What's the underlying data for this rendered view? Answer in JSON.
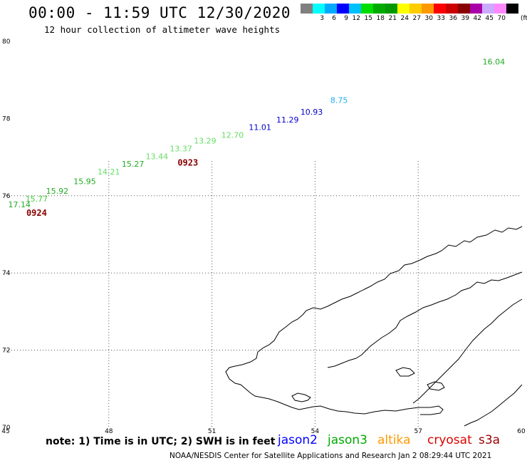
{
  "header": {
    "title": "00:00 - 11:59 UTC 12/30/2020",
    "subtitle": "12 hour collection of altimeter wave heights"
  },
  "colorbar": {
    "colors": [
      "#808080",
      "#00ffff",
      "#00aaff",
      "#0000ff",
      "#00c0ff",
      "#00dd00",
      "#00aa00",
      "#009900",
      "#ffff00",
      "#ffcc00",
      "#ff9900",
      "#ff0000",
      "#cc0000",
      "#880000",
      "#aa00aa",
      "#ccaaff",
      "#ff88ff",
      "#000000"
    ],
    "labels": [
      "",
      "3",
      "6",
      "9",
      "12",
      "15",
      "18",
      "21",
      "24",
      "27",
      "30",
      "33",
      "36",
      "39",
      "42",
      "45",
      "70",
      ""
    ],
    "unit": "(ft)"
  },
  "chart_data": {
    "type": "scatter",
    "x_axis": {
      "ticks": [
        45,
        48,
        51,
        54,
        57,
        60
      ],
      "labels": [
        "45",
        "48",
        "51",
        "54",
        "57",
        "60"
      ],
      "range": [
        45,
        60
      ]
    },
    "y_axis": {
      "ticks": [
        70,
        72,
        74,
        76,
        78,
        80
      ],
      "labels": [
        "70",
        "72",
        "74",
        "76",
        "78",
        "80"
      ],
      "range": [
        70,
        80
      ]
    },
    "grid": true,
    "points": [
      {
        "lon": 45.4,
        "lat": 75.7,
        "label": "17.14",
        "color": "#22aa22"
      },
      {
        "lon": 45.9,
        "lat": 75.85,
        "label": "15.77",
        "color": "#44cc44"
      },
      {
        "lon": 46.5,
        "lat": 76.05,
        "label": "15.92",
        "color": "#22aa22"
      },
      {
        "lon": 47.3,
        "lat": 76.3,
        "label": "15.95",
        "color": "#22aa22"
      },
      {
        "lon": 48.0,
        "lat": 76.55,
        "label": "14.21",
        "color": "#66dd66"
      },
      {
        "lon": 48.7,
        "lat": 76.75,
        "label": "15.27",
        "color": "#22aa22"
      },
      {
        "lon": 49.4,
        "lat": 76.95,
        "label": "13.44",
        "color": "#66dd66"
      },
      {
        "lon": 50.1,
        "lat": 77.15,
        "label": "13.37",
        "color": "#66dd66"
      },
      {
        "lon": 50.8,
        "lat": 77.35,
        "label": "13.29",
        "color": "#66dd66"
      },
      {
        "lon": 51.6,
        "lat": 77.5,
        "label": "12.70",
        "color": "#66dd66"
      },
      {
        "lon": 52.4,
        "lat": 77.7,
        "label": "11.01",
        "color": "#0000cc"
      },
      {
        "lon": 53.2,
        "lat": 77.9,
        "label": "11.29",
        "color": "#0000cc"
      },
      {
        "lon": 53.9,
        "lat": 78.1,
        "label": "10.93",
        "color": "#0000cc"
      },
      {
        "lon": 54.7,
        "lat": 78.4,
        "label": "8.75",
        "color": "#22aaee"
      },
      {
        "lon": 59.2,
        "lat": 79.4,
        "label": "16.04",
        "color": "#22aa22"
      }
    ],
    "time_labels": [
      {
        "lon": 45.6,
        "lat": 75.7,
        "label": "0924",
        "color": "#880000"
      },
      {
        "lon": 50.0,
        "lat": 77.0,
        "label": "0923",
        "color": "#880000"
      }
    ]
  },
  "footer": {
    "note": "note: 1) Time is in UTC; 2) SWH is in feet",
    "satellites": [
      {
        "name": "jason2",
        "color": "#0000ff"
      },
      {
        "name": "jason3",
        "color": "#00aa00"
      },
      {
        "name": "altika",
        "color": "#ff9900"
      },
      {
        "name": "cryosat",
        "color": "#dd0000"
      },
      {
        "name": "s3a",
        "color": "#990000"
      }
    ],
    "credit": "NOAA/NESDIS Center for Satellite Applications and Research   Jan  2 08:29:44 UTC 2021"
  }
}
